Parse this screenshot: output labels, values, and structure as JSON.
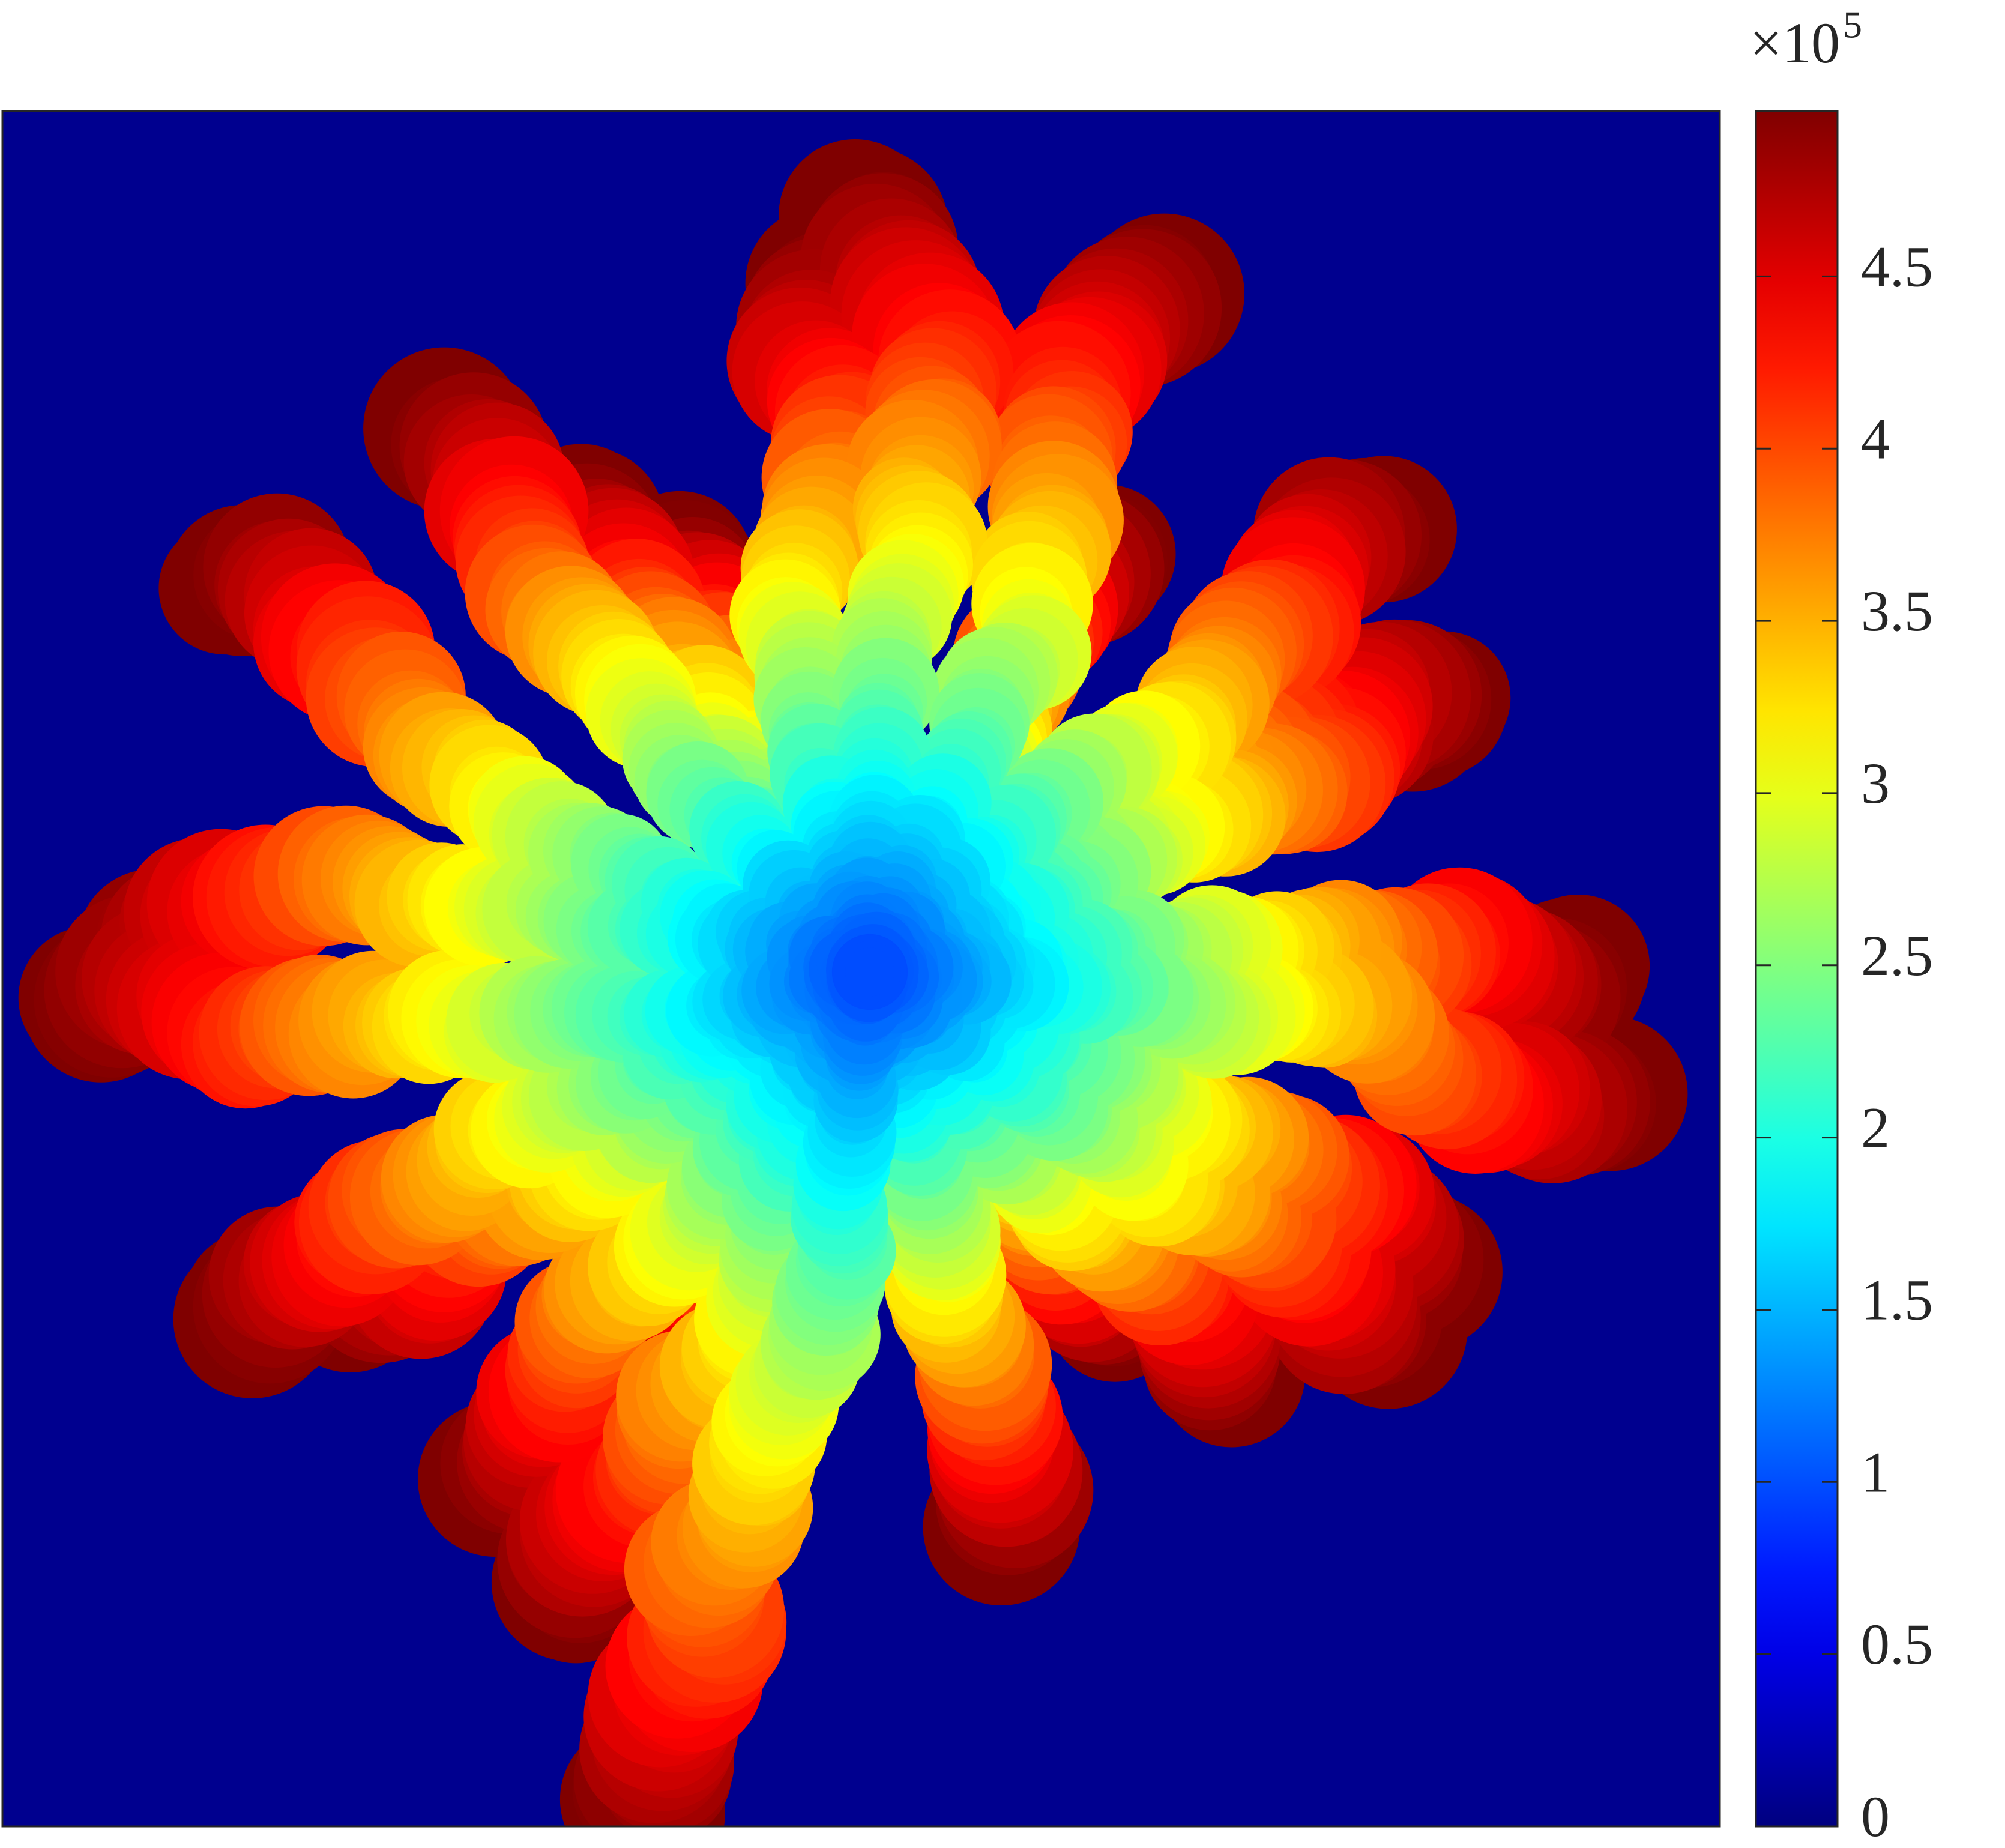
{
  "chart_data": {
    "type": "image",
    "colormap": "jet",
    "colorbar": {
      "clim": [
        0,
        4.98
      ],
      "ticks": [
        0,
        0.5,
        1,
        1.5,
        2,
        2.5,
        3,
        3.5,
        4,
        4.5
      ],
      "multiplier": {
        "base": "×10",
        "exponent": "5"
      }
    },
    "background_color": "#00008f"
  }
}
